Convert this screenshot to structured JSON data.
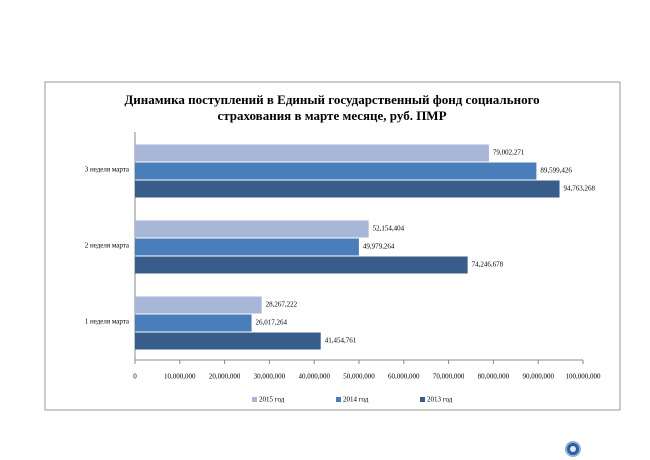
{
  "chart_data": {
    "type": "bar",
    "orientation": "horizontal",
    "title": [
      "Динамика поступлений в Единый государственный фонд социального",
      "страхования  в марте месяце, руб. ПМР"
    ],
    "categories": [
      "1 неделя марта",
      "2 неделя марта",
      "3 неделя марта"
    ],
    "series": [
      {
        "name": "2015 год",
        "color": "#a8b6d8",
        "values": [
          28267222,
          52154404,
          79002271
        ],
        "value_labels": [
          "28,267,222",
          "52,154,404",
          "79,002,271"
        ]
      },
      {
        "name": "2014 год",
        "color": "#4a7ebb",
        "values": [
          26017264,
          49979264,
          89599426
        ],
        "value_labels": [
          "26,017,264",
          "49,979,264",
          "89,599,426"
        ]
      },
      {
        "name": "2013 год",
        "color": "#385d8a",
        "values": [
          41454761,
          74246678,
          94763268
        ],
        "value_labels": [
          "41,454,761",
          "74,246,678",
          "94,763,268"
        ]
      }
    ],
    "xlim": [
      0,
      100000000
    ],
    "xticks": [
      0,
      {
        "value": 10000000,
        "label": "10,000,000"
      },
      {
        "value": 20000000,
        "label": "20,000,000"
      },
      {
        "value": 30000000,
        "label": "30,000,000"
      },
      {
        "value": 40000000,
        "label": "40,000,000"
      },
      {
        "value": 50000000,
        "label": "50,000,000"
      },
      {
        "value": 60000000,
        "label": "60,000,000"
      },
      {
        "value": 70000000,
        "label": "70,000,000"
      },
      {
        "value": 80000000,
        "label": "80,000,000"
      },
      {
        "value": 90000000,
        "label": "90,000,000"
      },
      {
        "value": 100000000,
        "label": "100,000,000"
      }
    ],
    "legend": "bottom"
  }
}
